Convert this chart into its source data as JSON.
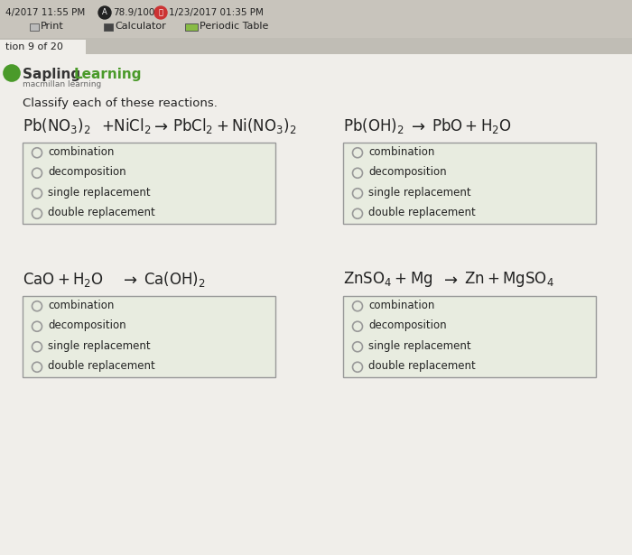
{
  "bg_color": "#d4d0c8",
  "toolbar_bg": "#c8c4bc",
  "content_bg": "#f0eeea",
  "tab_bg": "#c0bdb5",
  "box_bg": "#e8ece0",
  "box_border": "#999999",
  "green_color": "#4a9a2a",
  "text_dark": "#222222",
  "text_med": "#444444",
  "text_light": "#666666",
  "circle_edge": "#999999",
  "options": [
    "combination",
    "decomposition",
    "single replacement",
    "double replacement"
  ],
  "top_line": "4/2017 11:55 PM   78.9/100   1/23/2017 01:35 PM",
  "toolbar_items": [
    "Print",
    "Calculator",
    "Periodic Table"
  ],
  "tab_text": "tion 9 of 20",
  "instruction": "Classify each of these reactions.",
  "brand": "Sapling Learning",
  "brand_sub": "macmillan learning",
  "figw": 7.0,
  "figh": 6.15,
  "dpi": 100
}
